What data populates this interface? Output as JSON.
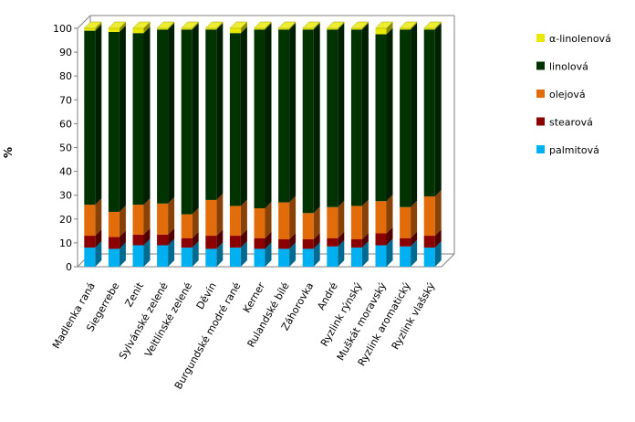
{
  "chart_data": {
    "type": "bar",
    "stacked": true,
    "three_d": true,
    "ylabel": "%",
    "xlabel": "",
    "title": "",
    "ylim": [
      0,
      100
    ],
    "yticks": [
      0,
      10,
      20,
      30,
      40,
      50,
      60,
      70,
      80,
      90,
      100
    ],
    "grid": false,
    "legend_position": "right",
    "categories": [
      "Madlenka raná",
      "Siegerrebe",
      "Zenit",
      "Sylvánské zelené",
      "Veltlínské zelené",
      "Děvín",
      "Burgundské modré rané",
      "Kerner",
      "Rulandské bílé",
      "Záhorovka",
      "André",
      "Ryzlink rýnský",
      "Muškát moravský",
      "Ryzlink aromatický",
      "Ryzlink vlašský"
    ],
    "series": [
      {
        "name": "palmitová",
        "color": "#00b0f0",
        "values": [
          8,
          7.5,
          9,
          9,
          8,
          7.5,
          8,
          7.5,
          7.5,
          7.5,
          8.5,
          8,
          9,
          8.5,
          8
        ]
      },
      {
        "name": "stearová",
        "color": "#8b0000",
        "values": [
          5,
          5,
          4.5,
          4.5,
          4,
          5.5,
          5,
          4.5,
          4,
          4,
          3.5,
          3.5,
          5,
          3.5,
          5
        ]
      },
      {
        "name": "olejová",
        "color": "#e36c0a",
        "values": [
          13,
          10.5,
          12.5,
          13,
          10,
          15,
          12.5,
          12.5,
          15.5,
          11,
          13,
          14,
          13.5,
          13,
          16.5
        ]
      },
      {
        "name": "linolová",
        "color": "#003300",
        "values": [
          73,
          75.5,
          72,
          73,
          77.5,
          71.5,
          72.5,
          75,
          72.5,
          77,
          74.5,
          74,
          70,
          74.5,
          70
        ]
      },
      {
        "name": "α-linolenová",
        "color": "#e8e800",
        "values": [
          1,
          1.5,
          2,
          0.5,
          0.5,
          0.5,
          2,
          0.5,
          0.5,
          0.5,
          0.5,
          0.5,
          2.5,
          0.5,
          0.5
        ]
      }
    ]
  }
}
